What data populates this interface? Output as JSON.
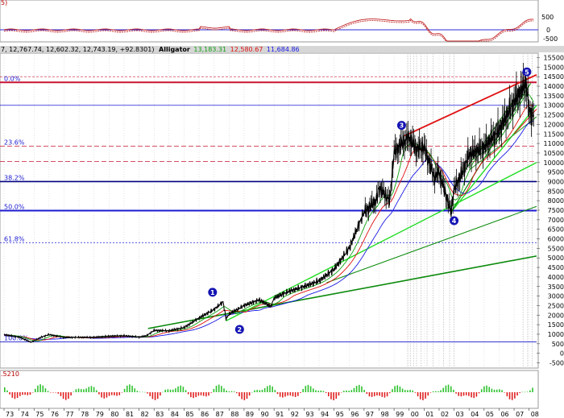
{
  "header": {
    "ohlc": "7, 12,767.74, 12,602.32, 12,743.19, +92.8301)",
    "indicator": "Alligator",
    "indicator_values": [
      "13,183.31",
      "12,580.67",
      "11,684.86"
    ],
    "macd_label": "5)",
    "bottom_label": ".5210"
  },
  "colors": {
    "fib_red": "#c81432",
    "fib_blue": "#1a1ad0",
    "price": "#000000",
    "jaw": "#1a1ae6",
    "teeth": "#e01010",
    "lips": "#10a010",
    "trend_dark_green": "#0a8a0a",
    "trend_light_green": "#22dd22",
    "channel_red": "#e01010",
    "wave_marker": "#1414b4",
    "osc_up": "#2ec22e",
    "osc_down": "#e02020"
  },
  "top_panel": {
    "y_ticks": [
      "500",
      "0",
      "-500"
    ]
  },
  "fibonacci": [
    {
      "label": "0.0%"
    },
    {
      "label": "23.6%"
    },
    {
      "label": "38.2%"
    },
    {
      "label": "50.0%"
    },
    {
      "label": "61.8%"
    },
    {
      "label": "100.0%"
    }
  ],
  "wave_labels": [
    "1",
    "2",
    "3",
    "4",
    "5"
  ],
  "chart_data": {
    "type": "line",
    "xlabel": "",
    "ylabel": "",
    "ylim": [
      -500,
      15500
    ],
    "y_ticks": [
      -500,
      0,
      500,
      1000,
      1500,
      2000,
      2500,
      3000,
      3500,
      4000,
      4500,
      5000,
      5500,
      6000,
      6500,
      7000,
      7500,
      8000,
      8500,
      9000,
      9500,
      10000,
      10500,
      11000,
      11500,
      12000,
      12500,
      13000,
      13500,
      14000,
      14500,
      15000,
      15500
    ],
    "x_ticks": [
      "73",
      "74",
      "75",
      "76",
      "77",
      "78",
      "79",
      "80",
      "81",
      "82",
      "83",
      "84",
      "85",
      "86",
      "87",
      "88",
      "89",
      "90",
      "91",
      "92",
      "93",
      "94",
      "95",
      "96",
      "97",
      "98",
      "99",
      "00",
      "01",
      "02",
      "03",
      "04",
      "05",
      "06",
      "07",
      "08"
    ],
    "fib_levels": [
      14200,
      10850,
      10050,
      9000,
      7480,
      5800,
      600
    ],
    "series": [
      {
        "x": [
          1973,
          1974,
          1974.8,
          1975.5,
          1976,
          1977,
          1978,
          1979,
          1980,
          1981,
          1982,
          1982.5,
          1983,
          1984,
          1985,
          1986,
          1987,
          1987.6,
          1987.8,
          1988,
          1989,
          1990,
          1990.8,
          1991,
          1992,
          1993,
          1994,
          1995,
          1996,
          1997,
          1997.8,
          1998,
          1998.7,
          1999,
          1999.5,
          2000,
          2000.5,
          2001,
          2001.7,
          2002,
          2002.8,
          2003,
          2003.5,
          2004,
          2005,
          2006,
          2007,
          2007.8,
          2008,
          2008.3
        ],
        "values": [
          980,
          850,
          580,
          850,
          980,
          830,
          840,
          840,
          900,
          920,
          850,
          920,
          1200,
          1180,
          1350,
          1850,
          2300,
          2700,
          1800,
          2050,
          2500,
          2800,
          2450,
          2900,
          3250,
          3500,
          3800,
          4400,
          5500,
          7400,
          8000,
          8700,
          8000,
          10500,
          11000,
          11300,
          10700,
          10800,
          9200,
          9500,
          7400,
          8600,
          9400,
          10400,
          10800,
          11700,
          13200,
          14150,
          12700,
          12500
        ]
      }
    ]
  }
}
